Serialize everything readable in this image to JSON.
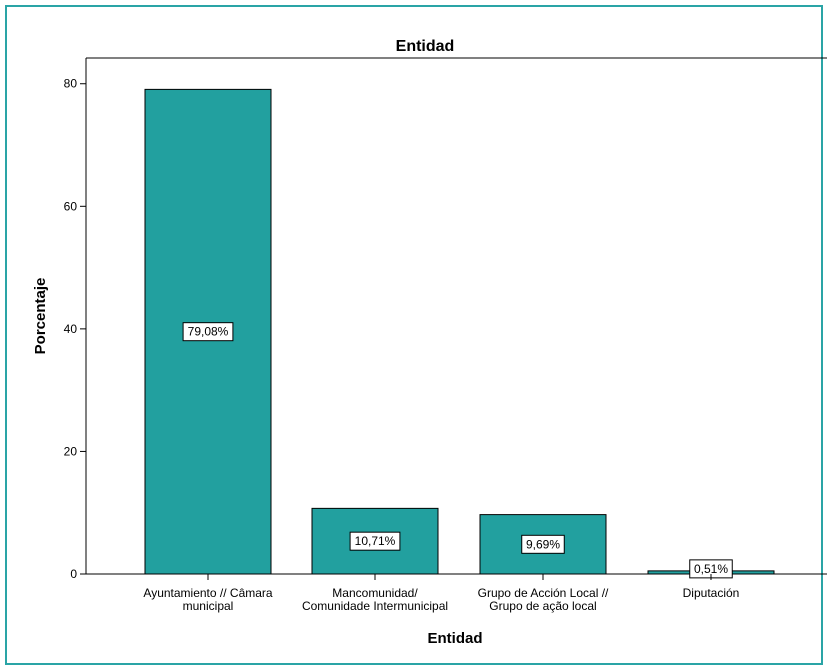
{
  "chart_data": {
    "type": "bar",
    "title": "Entidad",
    "xlabel": "Entidad",
    "ylabel": "Porcentaje",
    "ylim": [
      0,
      80
    ],
    "yticks": [
      0,
      20,
      40,
      60,
      80
    ],
    "grid": false,
    "categories": [
      [
        "Ayuntamiento // Câmara",
        "municipal"
      ],
      [
        "Mancomunidad/",
        "Comunidade Intermunicipal"
      ],
      [
        "Grupo de Acción Local //",
        "Grupo de ação local"
      ],
      [
        "Diputación"
      ]
    ],
    "values": [
      79.08,
      10.71,
      9.69,
      0.51
    ],
    "data_labels": [
      "79,08%",
      "10,71%",
      "9,69%",
      "0,51%"
    ],
    "colors": {
      "bar_fill": "#22a09f",
      "bar_stroke": "#000000",
      "frame": "#2aa4a6"
    }
  }
}
